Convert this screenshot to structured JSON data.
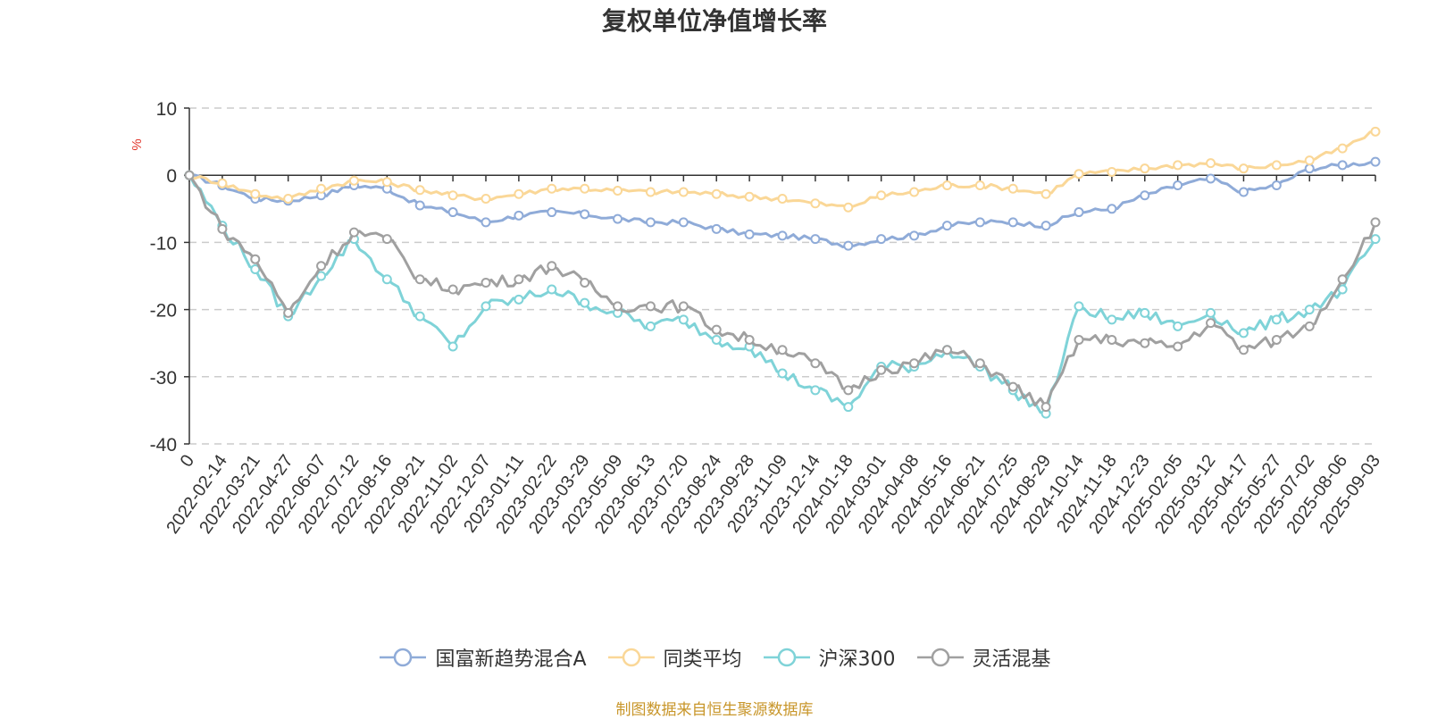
{
  "chart_data": {
    "type": "line",
    "title": "复权单位净值增长率",
    "ylabel": "%",
    "ylim": [
      -40,
      10
    ],
    "yticks": [
      10,
      0,
      -10,
      -20,
      -30,
      -40
    ],
    "grid": "horizontal-dashed",
    "legend_position": "bottom",
    "source_note": "制图数据来自恒生聚源数据库",
    "x_tick_labels": [
      "0",
      "2022-02-14",
      "2022-03-21",
      "2022-04-27",
      "2022-06-07",
      "2022-07-12",
      "2022-08-16",
      "2022-09-21",
      "2022-11-02",
      "2022-12-07",
      "2023-01-11",
      "2023-02-22",
      "2023-03-29",
      "2023-05-09",
      "2023-06-13",
      "2023-07-20",
      "2023-08-24",
      "2023-09-28",
      "2023-11-09",
      "2023-12-14",
      "2024-01-18",
      "2024-03-01",
      "2024-04-08",
      "2024-05-16",
      "2024-06-21",
      "2024-07-25",
      "2024-08-29",
      "2024-10-14",
      "2024-11-18",
      "2024-12-23",
      "2025-02-05",
      "2025-03-12",
      "2025-04-17",
      "2025-05-27",
      "2025-07-02",
      "2025-08-06",
      "2025-09-03"
    ],
    "series": [
      {
        "name": "国富新趋势混合A",
        "color": "#8fabd8",
        "values": [
          0,
          -1.5,
          -3.5,
          -3.8,
          -3.0,
          -1.5,
          -2.0,
          -4.5,
          -5.5,
          -7.0,
          -6.0,
          -5.5,
          -5.8,
          -6.5,
          -7.0,
          -7.0,
          -8.0,
          -8.8,
          -9.0,
          -9.5,
          -10.5,
          -9.5,
          -9.0,
          -7.5,
          -7.0,
          -7.0,
          -7.5,
          -5.5,
          -5.0,
          -3.0,
          -1.5,
          -0.5,
          -2.5,
          -1.5,
          1.0,
          1.5,
          2.0
        ]
      },
      {
        "name": "同类平均",
        "color": "#fad797",
        "values": [
          0,
          -1.2,
          -2.8,
          -3.5,
          -2.0,
          -0.8,
          -1.0,
          -2.2,
          -3.0,
          -3.5,
          -2.8,
          -2.0,
          -2.0,
          -2.3,
          -2.5,
          -2.5,
          -2.8,
          -3.2,
          -3.5,
          -4.2,
          -4.8,
          -3.0,
          -2.5,
          -1.5,
          -1.5,
          -2.0,
          -2.8,
          0.2,
          0.5,
          1.0,
          1.5,
          1.8,
          1.0,
          1.5,
          2.2,
          4.0,
          6.5
        ]
      },
      {
        "name": "沪深300",
        "color": "#7fd3d8",
        "values": [
          0,
          -7.5,
          -14.0,
          -21.0,
          -15.0,
          -9.5,
          -15.5,
          -21.0,
          -25.5,
          -19.5,
          -18.5,
          -17.0,
          -19.0,
          -20.5,
          -22.5,
          -21.5,
          -24.5,
          -25.5,
          -29.5,
          -32.0,
          -34.5,
          -28.5,
          -28.5,
          -26.0,
          -28.5,
          -32.0,
          -35.5,
          -19.5,
          -21.5,
          -20.5,
          -22.5,
          -20.5,
          -23.5,
          -21.5,
          -20.0,
          -17.0,
          -9.5
        ]
      },
      {
        "name": "灵活混基",
        "color": "#a0a0a0",
        "values": [
          0,
          -8.0,
          -12.5,
          -20.5,
          -13.5,
          -8.5,
          -9.5,
          -15.5,
          -17.0,
          -16.0,
          -15.5,
          -13.5,
          -16.0,
          -19.5,
          -19.5,
          -19.5,
          -23.0,
          -24.5,
          -26.0,
          -28.0,
          -32.0,
          -29.0,
          -28.0,
          -26.0,
          -28.0,
          -31.5,
          -34.5,
          -24.5,
          -24.5,
          -25.0,
          -25.5,
          -22.0,
          -26.0,
          -24.5,
          -22.5,
          -15.5,
          -7.0
        ]
      }
    ]
  }
}
